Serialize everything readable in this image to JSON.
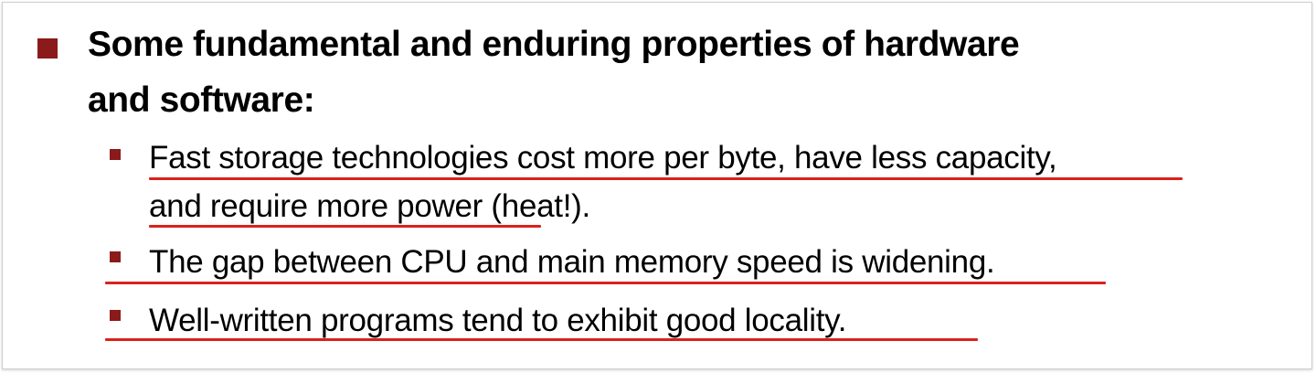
{
  "main_bullet": {
    "line1": "Some fundamental and enduring properties of hardware",
    "line2": "and software:"
  },
  "sub_bullets": [
    {
      "line1": "Fast storage technologies cost more per byte, have less capacity,",
      "line2_underlined": "and require more power",
      "line2_rest": " (heat!)."
    },
    {
      "text": "The gap between CPU and main memory speed is widening."
    },
    {
      "text": "Well-written programs tend to exhibit good locality."
    }
  ],
  "colors": {
    "bullet": "#8b1a1a",
    "underline": "#d9221c",
    "text": "#000000"
  }
}
